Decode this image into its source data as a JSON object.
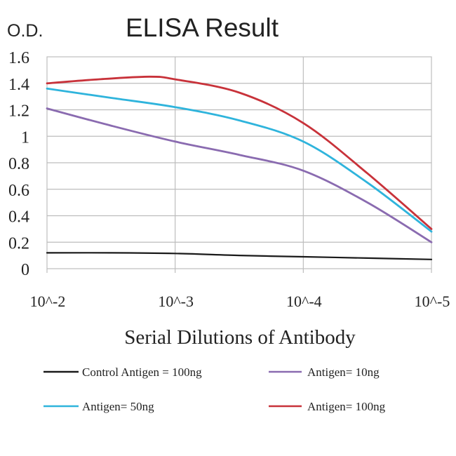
{
  "chart_data": {
    "type": "line",
    "title": "ELISA Result",
    "ylabel": "O.D.",
    "xlabel": "Serial Dilutions of Antibody",
    "x_categories": [
      "10^-2",
      "10^-3",
      "10^-4",
      "10^-5"
    ],
    "y_ticks": [
      "0",
      "0.2",
      "0.4",
      "0.6",
      "0.8",
      "1",
      "1.2",
      "1.4",
      "1.6"
    ],
    "ylim": [
      0,
      1.6
    ],
    "grid": true,
    "legend_placement": "bottom",
    "series": [
      {
        "name": "Control Antigen = 100ng",
        "color": "#1a1a1a",
        "points": [
          [
            0,
            0.12
          ],
          [
            0.5,
            0.12
          ],
          [
            1,
            0.115
          ],
          [
            1.5,
            0.1
          ],
          [
            2,
            0.09
          ],
          [
            2.5,
            0.08
          ],
          [
            3,
            0.07
          ]
        ]
      },
      {
        "name": "Antigen= 10ng",
        "color": "#8a6bb0",
        "points": [
          [
            0,
            1.21
          ],
          [
            0.5,
            1.08
          ],
          [
            1,
            0.96
          ],
          [
            1.5,
            0.86
          ],
          [
            2,
            0.74
          ],
          [
            2.5,
            0.5
          ],
          [
            3,
            0.2
          ]
        ]
      },
      {
        "name": "Antigen= 50ng",
        "color": "#2fb4dc",
        "points": [
          [
            0,
            1.36
          ],
          [
            0.5,
            1.29
          ],
          [
            1,
            1.22
          ],
          [
            1.5,
            1.12
          ],
          [
            2,
            0.96
          ],
          [
            2.5,
            0.65
          ],
          [
            3,
            0.28
          ]
        ]
      },
      {
        "name": "Antigen= 100ng",
        "color": "#c8323a",
        "points": [
          [
            0,
            1.4
          ],
          [
            0.4,
            1.43
          ],
          [
            0.8,
            1.45
          ],
          [
            1,
            1.43
          ],
          [
            1.5,
            1.33
          ],
          [
            2,
            1.1
          ],
          [
            2.5,
            0.72
          ],
          [
            3,
            0.3
          ]
        ]
      }
    ]
  }
}
